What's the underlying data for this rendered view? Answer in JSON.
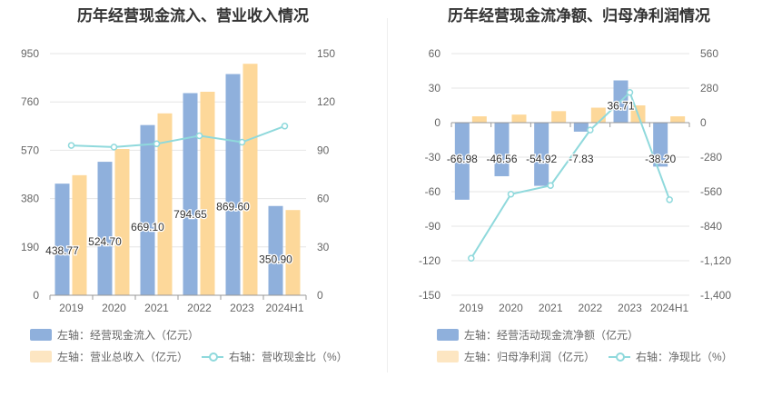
{
  "colors": {
    "bar_primary": "#8fb0dc",
    "bar_secondary": "#fdd89a",
    "line": "#8fd9dc",
    "grid": "#e6e6e6",
    "axis": "#999999",
    "tick_text": "#666666",
    "label_text": "#333333"
  },
  "chart_data": [
    {
      "type": "bar",
      "title": "历年经营现金流入、营业收入情况",
      "categories": [
        "2019",
        "2020",
        "2021",
        "2022",
        "2023",
        "2024H1"
      ],
      "y_left": {
        "min": 0,
        "max": 950,
        "ticks": [
          "0",
          "190",
          "380",
          "570",
          "760",
          "950"
        ]
      },
      "y_right": {
        "min": 0,
        "max": 150,
        "ticks": [
          "0",
          "30",
          "60",
          "90",
          "120",
          "150"
        ]
      },
      "series": [
        {
          "name": "左轴：经营现金流入（亿元）",
          "axis": "left",
          "kind": "bar",
          "values": [
            438.77,
            524.7,
            669.1,
            794.65,
            869.6,
            350.9
          ],
          "labels": [
            "438.77",
            "524.70",
            "669.10",
            "794.65",
            "869.60",
            "350.90"
          ]
        },
        {
          "name": "左轴：营业总收入（亿元）",
          "axis": "left",
          "kind": "bar",
          "values": [
            472,
            575,
            715,
            800,
            910,
            335
          ]
        },
        {
          "name": "右轴：营收现金比（%）",
          "axis": "right",
          "kind": "line",
          "values": [
            93,
            92,
            94,
            99,
            95,
            105
          ]
        }
      ]
    },
    {
      "type": "bar",
      "title": "历年经营现金流净额、归母净利润情况",
      "categories": [
        "2019",
        "2020",
        "2021",
        "2022",
        "2023",
        "2024H1"
      ],
      "y_left": {
        "min": -150,
        "max": 60,
        "ticks": [
          "-150",
          "-120",
          "-90",
          "-60",
          "-30",
          "0",
          "30",
          "60"
        ]
      },
      "y_right": {
        "min": -1400,
        "max": 560,
        "ticks": [
          "-1,400",
          "-1,120",
          "-840",
          "-560",
          "-280",
          "0",
          "280",
          "560"
        ]
      },
      "series": [
        {
          "name": "左轴：经营活动现金流净额（亿元）",
          "axis": "left",
          "kind": "bar",
          "values": [
            -66.98,
            -46.56,
            -54.92,
            -7.83,
            36.71,
            -38.2
          ],
          "labels": [
            "-66.98",
            "-46.56",
            "-54.92",
            "-7.83",
            "36.71",
            "-38.20"
          ]
        },
        {
          "name": "左轴：归母净利润（亿元）",
          "axis": "left",
          "kind": "bar",
          "values": [
            5.5,
            7.0,
            10.0,
            13.0,
            15.0,
            5.5
          ]
        },
        {
          "name": "右轴：净现比（%）",
          "axis": "right",
          "kind": "line",
          "values": [
            -1100,
            -580,
            -510,
            -60,
            245,
            -625
          ]
        }
      ]
    }
  ]
}
